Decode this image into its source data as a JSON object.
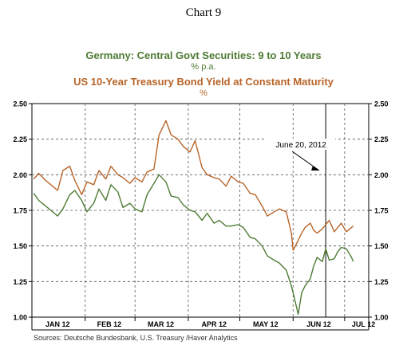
{
  "chart_number": "Chart 9",
  "colors": {
    "germany": "#4e7b34",
    "us": "#b8652a",
    "axis": "#000000",
    "grid": "#555555"
  },
  "source": "Sources:  Deutsche Bundesbank, U.S. Treasury /Haver Analytics",
  "chart_data": {
    "type": "line",
    "title": "Chart 9",
    "series_titles": [
      {
        "name": "Germany: Central Govt Securities: 9 to 10 Years",
        "unit": "% p.a."
      },
      {
        "name": "US 10-Year Treasury Bond Yield at Constant Maturity",
        "unit": "%"
      }
    ],
    "x_tick_labels": [
      "JAN 12",
      "FEB 12",
      "MAR 12",
      "APR 12",
      "MAY 12",
      "JUN 12",
      "JUL 12"
    ],
    "x_range": [
      "2012-01-01",
      "2012-07-15"
    ],
    "ylim": [
      1.0,
      2.5
    ],
    "y_ticks": [
      "1.00",
      "1.25",
      "1.50",
      "1.75",
      "2.00",
      "2.25",
      "2.50"
    ],
    "grid": true,
    "annotation": {
      "text": "June 20, 2012",
      "date": "2012-06-20"
    },
    "series": [
      {
        "name": "Germany: Central Govt Securities: 9 to 10 Years",
        "color": "#4e7b34",
        "points": [
          [
            "2012-01-02",
            1.87
          ],
          [
            "2012-01-05",
            1.82
          ],
          [
            "2012-01-09",
            1.78
          ],
          [
            "2012-01-12",
            1.75
          ],
          [
            "2012-01-16",
            1.71
          ],
          [
            "2012-01-19",
            1.76
          ],
          [
            "2012-01-23",
            1.86
          ],
          [
            "2012-01-26",
            1.89
          ],
          [
            "2012-01-30",
            1.82
          ],
          [
            "2012-02-02",
            1.74
          ],
          [
            "2012-02-06",
            1.8
          ],
          [
            "2012-02-09",
            1.9
          ],
          [
            "2012-02-13",
            1.82
          ],
          [
            "2012-02-16",
            1.93
          ],
          [
            "2012-02-20",
            1.88
          ],
          [
            "2012-02-23",
            1.77
          ],
          [
            "2012-02-27",
            1.8
          ],
          [
            "2012-03-01",
            1.76
          ],
          [
            "2012-03-05",
            1.74
          ],
          [
            "2012-03-08",
            1.86
          ],
          [
            "2012-03-12",
            1.94
          ],
          [
            "2012-03-15",
            2.0
          ],
          [
            "2012-03-19",
            1.95
          ],
          [
            "2012-03-22",
            1.85
          ],
          [
            "2012-03-26",
            1.84
          ],
          [
            "2012-03-29",
            1.79
          ],
          [
            "2012-04-02",
            1.75
          ],
          [
            "2012-04-05",
            1.74
          ],
          [
            "2012-04-09",
            1.68
          ],
          [
            "2012-04-12",
            1.73
          ],
          [
            "2012-04-16",
            1.66
          ],
          [
            "2012-04-19",
            1.68
          ],
          [
            "2012-04-23",
            1.64
          ],
          [
            "2012-04-26",
            1.64
          ],
          [
            "2012-04-30",
            1.65
          ],
          [
            "2012-05-03",
            1.63
          ],
          [
            "2012-05-07",
            1.56
          ],
          [
            "2012-05-10",
            1.55
          ],
          [
            "2012-05-14",
            1.5
          ],
          [
            "2012-05-17",
            1.43
          ],
          [
            "2012-05-21",
            1.4
          ],
          [
            "2012-05-24",
            1.38
          ],
          [
            "2012-05-28",
            1.33
          ],
          [
            "2012-05-31",
            1.22
          ],
          [
            "2012-06-01",
            1.17
          ],
          [
            "2012-06-04",
            1.02
          ],
          [
            "2012-06-06",
            1.17
          ],
          [
            "2012-06-08",
            1.22
          ],
          [
            "2012-06-11",
            1.27
          ],
          [
            "2012-06-13",
            1.36
          ],
          [
            "2012-06-15",
            1.42
          ],
          [
            "2012-06-18",
            1.39
          ],
          [
            "2012-06-20",
            1.48
          ],
          [
            "2012-06-22",
            1.4
          ],
          [
            "2012-06-25",
            1.41
          ],
          [
            "2012-06-27",
            1.46
          ],
          [
            "2012-06-29",
            1.49
          ],
          [
            "2012-07-02",
            1.48
          ],
          [
            "2012-07-05",
            1.42
          ],
          [
            "2012-07-06",
            1.39
          ]
        ]
      },
      {
        "name": "US 10-Year Treasury Bond Yield at Constant Maturity",
        "color": "#b8652a",
        "points": [
          [
            "2012-01-02",
            1.97
          ],
          [
            "2012-01-05",
            2.01
          ],
          [
            "2012-01-09",
            1.96
          ],
          [
            "2012-01-12",
            1.93
          ],
          [
            "2012-01-16",
            1.89
          ],
          [
            "2012-01-19",
            2.03
          ],
          [
            "2012-01-23",
            2.06
          ],
          [
            "2012-01-26",
            1.96
          ],
          [
            "2012-01-30",
            1.86
          ],
          [
            "2012-02-02",
            1.95
          ],
          [
            "2012-02-06",
            1.93
          ],
          [
            "2012-02-09",
            2.03
          ],
          [
            "2012-02-13",
            1.97
          ],
          [
            "2012-02-16",
            2.06
          ],
          [
            "2012-02-20",
            2.0
          ],
          [
            "2012-02-23",
            1.98
          ],
          [
            "2012-02-27",
            1.94
          ],
          [
            "2012-03-01",
            1.98
          ],
          [
            "2012-03-05",
            1.95
          ],
          [
            "2012-03-08",
            2.02
          ],
          [
            "2012-03-12",
            2.04
          ],
          [
            "2012-03-15",
            2.28
          ],
          [
            "2012-03-19",
            2.38
          ],
          [
            "2012-03-22",
            2.28
          ],
          [
            "2012-03-26",
            2.25
          ],
          [
            "2012-03-29",
            2.2
          ],
          [
            "2012-04-02",
            2.16
          ],
          [
            "2012-04-05",
            2.24
          ],
          [
            "2012-04-09",
            2.05
          ],
          [
            "2012-04-12",
            2.0
          ],
          [
            "2012-04-16",
            1.98
          ],
          [
            "2012-04-19",
            1.97
          ],
          [
            "2012-04-23",
            1.92
          ],
          [
            "2012-04-26",
            1.99
          ],
          [
            "2012-04-30",
            1.95
          ],
          [
            "2012-05-03",
            1.94
          ],
          [
            "2012-05-07",
            1.87
          ],
          [
            "2012-05-10",
            1.86
          ],
          [
            "2012-05-14",
            1.78
          ],
          [
            "2012-05-17",
            1.71
          ],
          [
            "2012-05-21",
            1.74
          ],
          [
            "2012-05-24",
            1.76
          ],
          [
            "2012-05-28",
            1.74
          ],
          [
            "2012-05-31",
            1.59
          ],
          [
            "2012-06-01",
            1.47
          ],
          [
            "2012-06-04",
            1.54
          ],
          [
            "2012-06-06",
            1.59
          ],
          [
            "2012-06-08",
            1.63
          ],
          [
            "2012-06-11",
            1.66
          ],
          [
            "2012-06-13",
            1.61
          ],
          [
            "2012-06-15",
            1.59
          ],
          [
            "2012-06-18",
            1.62
          ],
          [
            "2012-06-20",
            1.65
          ],
          [
            "2012-06-22",
            1.68
          ],
          [
            "2012-06-25",
            1.6
          ],
          [
            "2012-06-27",
            1.63
          ],
          [
            "2012-06-29",
            1.66
          ],
          [
            "2012-07-02",
            1.6
          ],
          [
            "2012-07-05",
            1.63
          ],
          [
            "2012-07-06",
            1.64
          ]
        ]
      }
    ]
  }
}
